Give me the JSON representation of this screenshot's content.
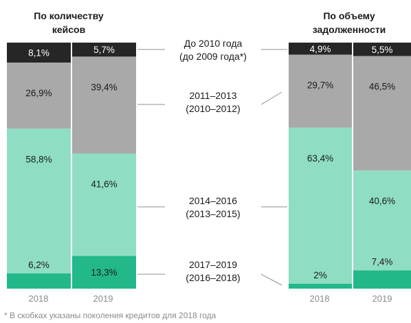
{
  "colors": {
    "pre_2010": "#262626",
    "y2011_2013": "#a9a9a9",
    "y2014_2016": "#8fdec4",
    "y2017_2019": "#22b88a",
    "connector": "#8f8f8f"
  },
  "footnote": "* В скобках указаны поколения кредитов для 2018 года",
  "chart_data": [
    {
      "type": "bar",
      "stacked": true,
      "title": "По количеству кейсов",
      "categories": [
        "2018",
        "2019"
      ],
      "series": [
        {
          "name": "До 2010 года (до 2009 года*)",
          "values": [
            8.1,
            5.7
          ],
          "labels": [
            "8,1%",
            "5,7%"
          ]
        },
        {
          "name": "2011–2013 (2010–2012)",
          "values": [
            26.9,
            39.4
          ],
          "labels": [
            "26,9%",
            "39,4%"
          ]
        },
        {
          "name": "2014–2016 (2013–2015)",
          "values": [
            58.8,
            41.6
          ],
          "labels": [
            "58,8%",
            "41,6%"
          ]
        },
        {
          "name": "2017–2019 (2016–2018)",
          "values": [
            6.2,
            13.3
          ],
          "labels": [
            "6,2%",
            "13,3%"
          ]
        }
      ]
    },
    {
      "type": "bar",
      "stacked": true,
      "title": "По объему задолженности",
      "categories": [
        "2018",
        "2019"
      ],
      "series": [
        {
          "name": "До 2010 года (до 2009 года*)",
          "values": [
            4.9,
            5.5
          ],
          "labels": [
            "4,9%",
            "5,5%"
          ]
        },
        {
          "name": "2011–2013 (2010–2012)",
          "values": [
            29.7,
            46.5
          ],
          "labels": [
            "29,7%",
            "46,5%"
          ]
        },
        {
          "name": "2014–2016 (2013–2015)",
          "values": [
            63.4,
            40.6
          ],
          "labels": [
            "63,4%",
            "40,6%"
          ]
        },
        {
          "name": "2017–2019 (2016–2018)",
          "values": [
            2,
            7.4
          ],
          "labels": [
            "2%",
            "7,4%"
          ]
        }
      ]
    }
  ],
  "legend": [
    {
      "line1": "До 2010 года",
      "line2": "(до 2009 года*)"
    },
    {
      "line1": "2011–2013",
      "line2": "(2010–2012)"
    },
    {
      "line1": "2014–2016",
      "line2": "(2013–2015)"
    },
    {
      "line1": "2017–2019",
      "line2": "(2016–2018)"
    }
  ],
  "panel_titles": [
    {
      "line1": "По количеству",
      "line2": "кейсов"
    },
    {
      "line1": "По объему",
      "line2": "задолженности"
    }
  ]
}
